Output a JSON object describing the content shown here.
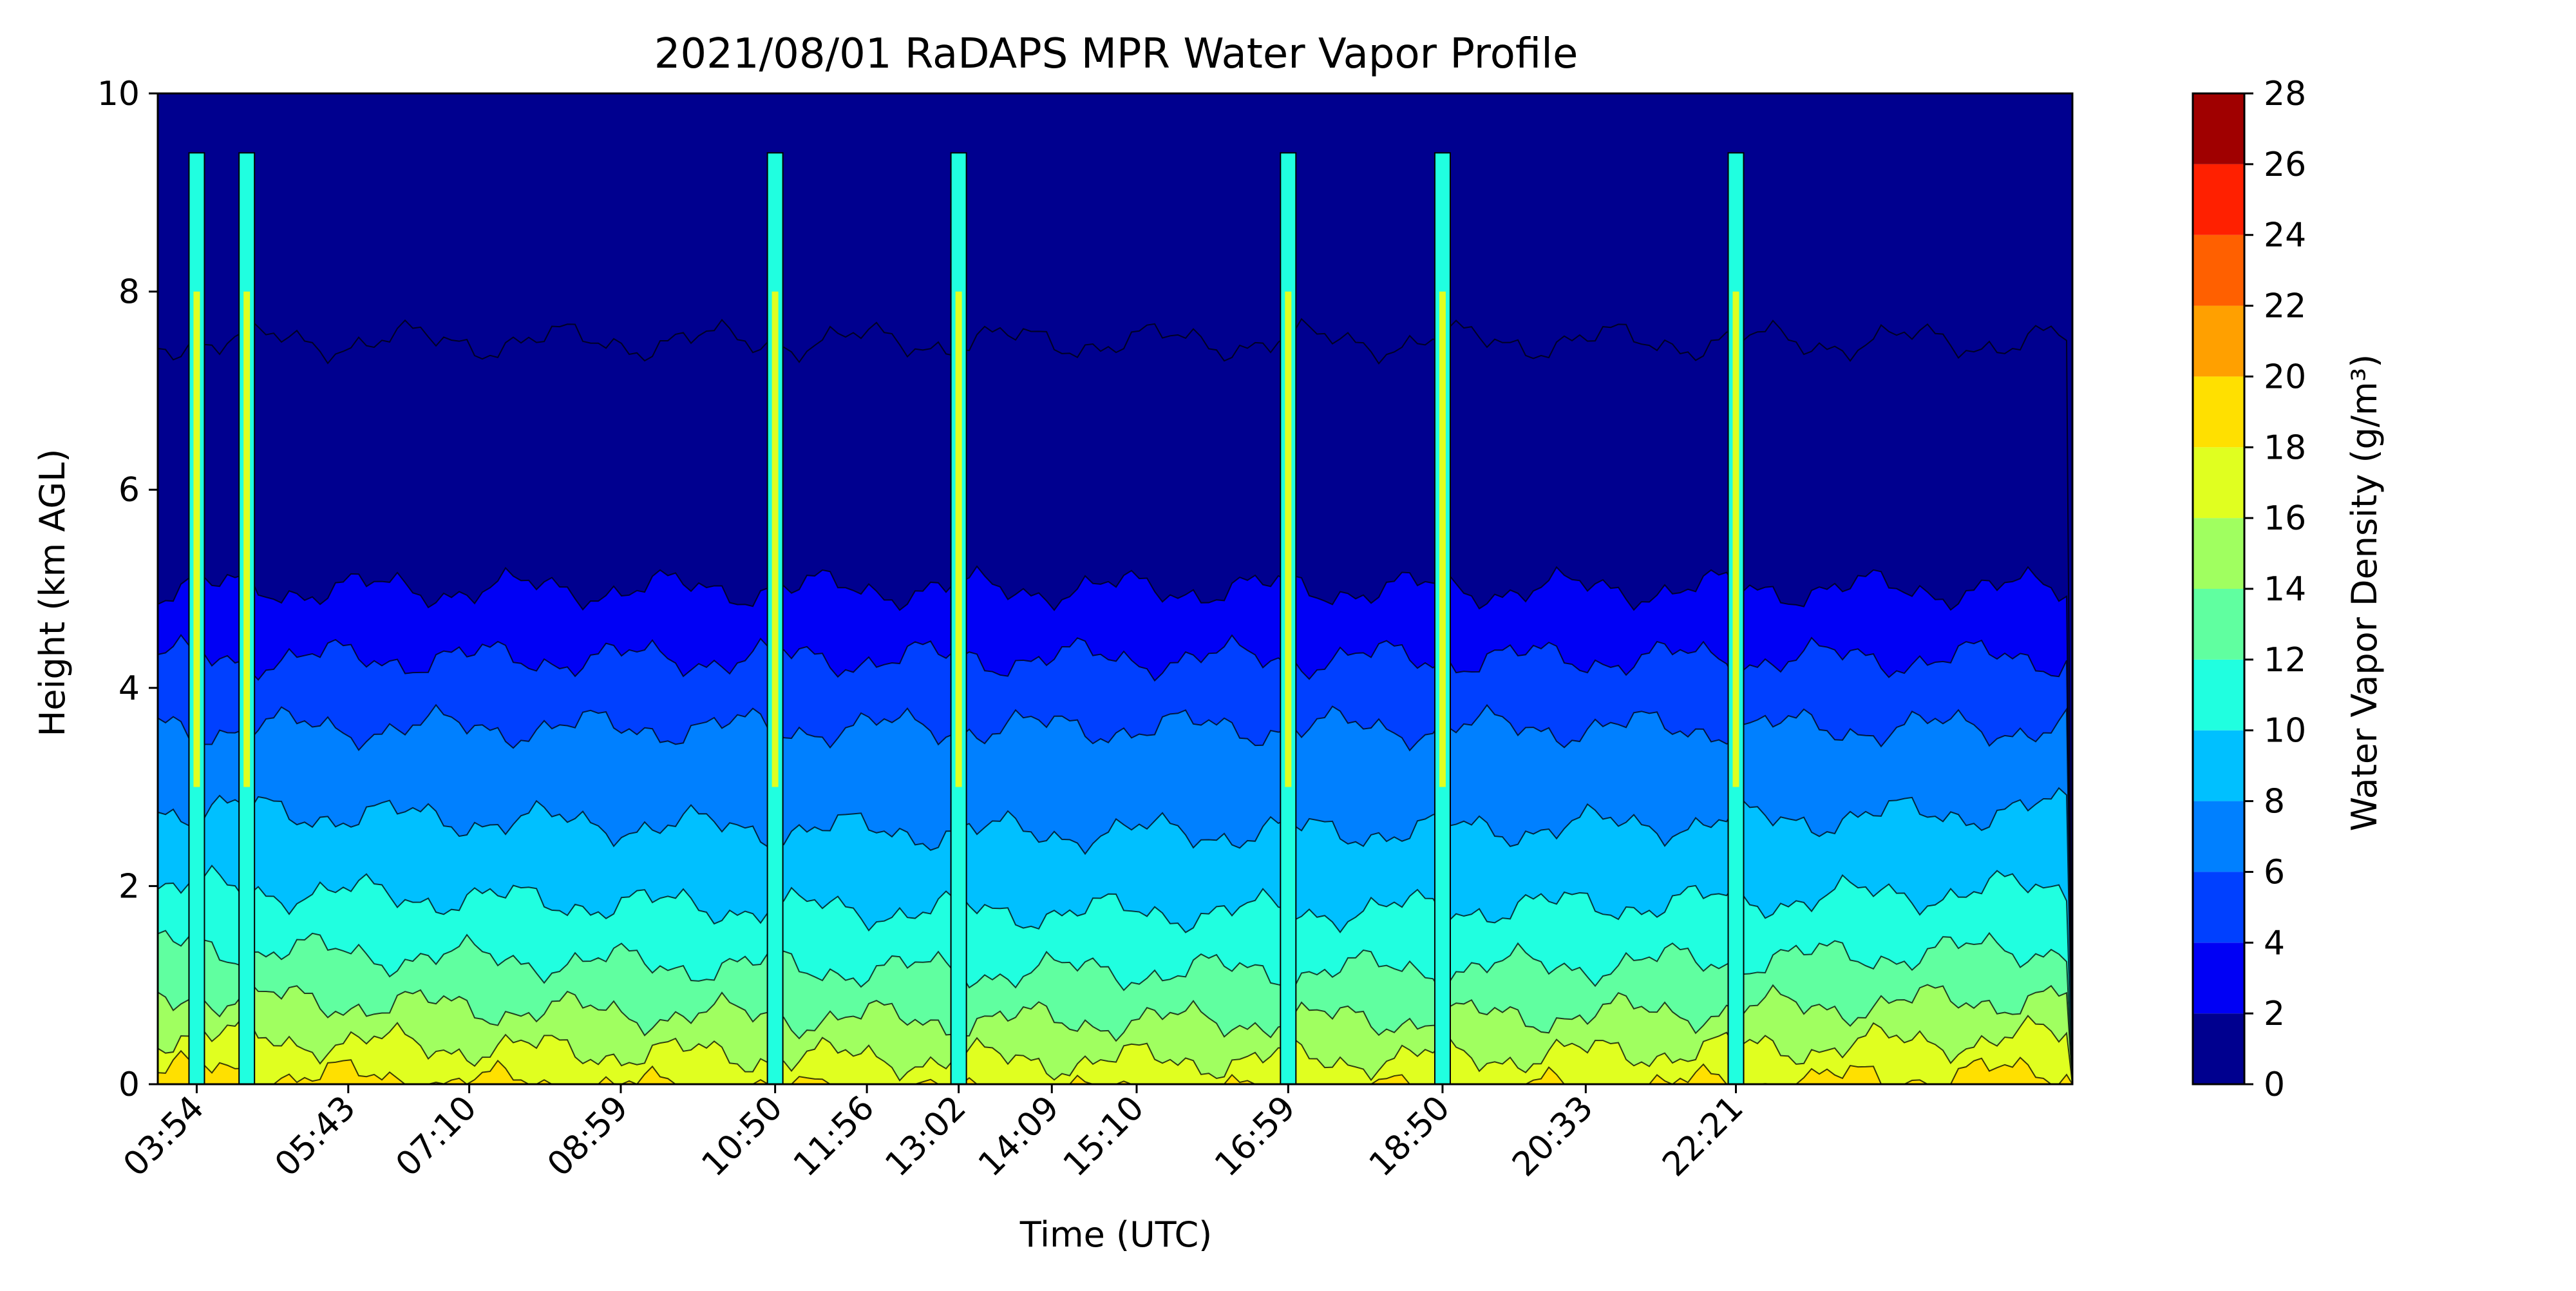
{
  "chart_data": {
    "type": "heatmap",
    "title": "2021/08/01 RaDAPS MPR Water Vapor Profile",
    "xlabel": "Time (UTC)",
    "ylabel": "Height (km AGL)",
    "colorbar_label": "Water Vapor Density (g/m³)",
    "x_ticks": [
      "03:54",
      "05:43",
      "07:10",
      "08:59",
      "10:50",
      "11:56",
      "13:02",
      "14:09",
      "15:10",
      "16:59",
      "18:50",
      "20:33",
      "22:21"
    ],
    "y_ticks": [
      0,
      2,
      4,
      6,
      8,
      10
    ],
    "ylim": [
      0,
      10
    ],
    "colorbar_ticks": [
      0,
      2,
      4,
      6,
      8,
      10,
      12,
      14,
      16,
      18,
      20,
      22,
      24,
      26,
      28
    ],
    "levels": [
      {
        "range": [
          0,
          2
        ],
        "color": "#00008f"
      },
      {
        "range": [
          2,
          4
        ],
        "color": "#0000f5"
      },
      {
        "range": [
          4,
          6
        ],
        "color": "#0040ff"
      },
      {
        "range": [
          6,
          8
        ],
        "color": "#0080ff"
      },
      {
        "range": [
          8,
          10
        ],
        "color": "#00c0ff"
      },
      {
        "range": [
          10,
          12
        ],
        "color": "#20ffe0"
      },
      {
        "range": [
          12,
          14
        ],
        "color": "#60ffa0"
      },
      {
        "range": [
          14,
          16
        ],
        "color": "#a0ff60"
      },
      {
        "range": [
          16,
          18
        ],
        "color": "#e0ff20"
      },
      {
        "range": [
          18,
          20
        ],
        "color": "#ffe000"
      },
      {
        "range": [
          20,
          22
        ],
        "color": "#ffa000"
      },
      {
        "range": [
          22,
          24
        ],
        "color": "#ff6000"
      },
      {
        "range": [
          24,
          26
        ],
        "color": "#ff2000"
      },
      {
        "range": [
          26,
          28
        ],
        "color": "#a00000"
      }
    ],
    "mean_profile": [
      {
        "height_km": 0.15,
        "value": 19
      },
      {
        "height_km": 0.5,
        "value": 17
      },
      {
        "height_km": 0.9,
        "value": 15
      },
      {
        "height_km": 1.4,
        "value": 13
      },
      {
        "height_km": 2.0,
        "value": 11
      },
      {
        "height_km": 2.8,
        "value": 9
      },
      {
        "height_km": 3.6,
        "value": 7
      },
      {
        "height_km": 4.3,
        "value": 5
      },
      {
        "height_km": 5.0,
        "value": 3
      },
      {
        "height_km": 7.5,
        "value": 1
      }
    ],
    "rain_spikes": [
      "03:54",
      "04:30",
      "10:50",
      "13:02",
      "16:59",
      "18:50",
      "22:21"
    ]
  }
}
